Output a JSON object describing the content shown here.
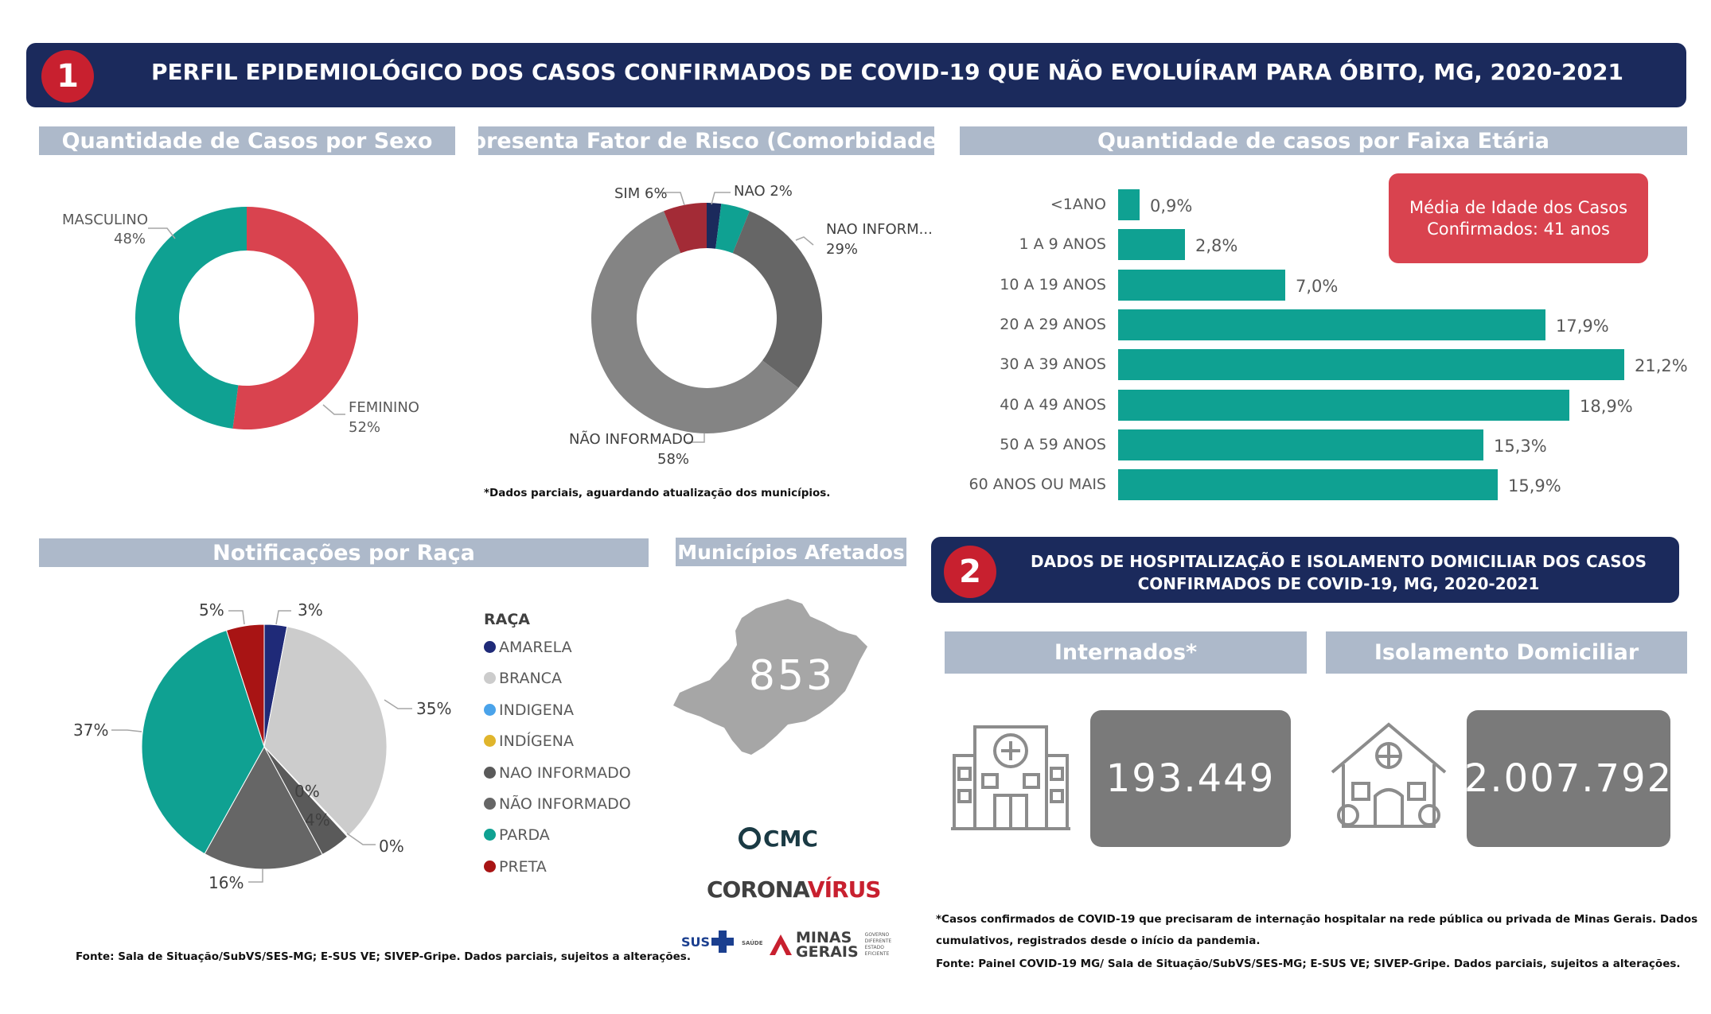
{
  "header1": {
    "number": "1",
    "title": "PERFIL EPIDEMIOLÓGICO DOS CASOS CONFIRMADOS DE COVID-19 QUE NÃO EVOLUÍRAM PARA ÓBITO, MG, 2020-2021"
  },
  "header2": {
    "number": "2",
    "title_line1": "DADOS DE HOSPITALIZAÇÃO E ISOLAMENTO DOMICILIAR DOS CASOS",
    "title_line2": "CONFIRMADOS DE COVID-19, MG, 2020-2021"
  },
  "sections": {
    "sexo": "Quantidade de Casos por Sexo",
    "risco": "Apresenta Fator de Risco (Comorbidade*)",
    "faixa": "Quantidade de casos por Faixa Etária",
    "raca": "Notificações por Raça",
    "municipios": "Municípios Afetados",
    "internados": "Internados*",
    "isolamento": "Isolamento Domiciliar"
  },
  "notes": {
    "risco": "*Dados parciais, aguardando atualização dos municípios.",
    "fonte1": "Fonte: Sala de Situação/SubVS/SES-MG; E-SUS VE; SIVEP-Gripe. Dados parciais, sujeitos a alterações.",
    "hosp_line1": "*Casos confirmados de COVID-19 que precisaram de internação hospitalar na rede pública ou privada de Minas Gerais. Dados",
    "hosp_line2": "cumulativos, registrados desde o início da pandemia.",
    "fonte2": "Fonte: Painel COVID-19 MG/ Sala de Situação/SubVS/SES-MG; E-SUS VE; SIVEP-Gripe. Dados parciais, sujeitos a alterações."
  },
  "media_idade": {
    "line1": "Média de Idade dos Casos",
    "line2": "Confirmados: 41 anos"
  },
  "municipios": {
    "value": "853"
  },
  "internados": {
    "value": "193.449"
  },
  "isolamento": {
    "value": "2.007.792"
  },
  "logos": {
    "cmc": "CMC",
    "corona1": "CORONA",
    "corona2": "VÍRUS",
    "sus": "SUS",
    "saude": "SAÚDE",
    "minas1": "MINAS",
    "minas2": "GERAIS",
    "gov1": "GOVERNO",
    "gov2": "DIFERENTE",
    "gov3": "ESTADO",
    "gov4": "EFICIENTE"
  },
  "colors": {
    "banner": "#1b2a5c",
    "badge": "#c8202f",
    "teal": "#0fa192",
    "red": "#d9434f",
    "section": "#adb9ca",
    "bigbox": "#7a7a7a"
  },
  "chart_data": [
    {
      "type": "pie",
      "variant": "donut",
      "slices": [
        {
          "label": "FEMININO",
          "value": 52,
          "pct_label": "52%",
          "color": "#d9434f"
        },
        {
          "label": "MASCULINO",
          "value": 48,
          "pct_label": "48%",
          "color": "#0fa192"
        }
      ]
    },
    {
      "type": "pie",
      "variant": "donut",
      "slices": [
        {
          "label": "NAO",
          "value": 2,
          "pct_label": "NAO 2%",
          "color": "#1b2a5c"
        },
        {
          "label": "",
          "value": 4,
          "pct_label": "",
          "color": "#0fa192"
        },
        {
          "label": "NAO INFORM...",
          "value": 29,
          "pct_label": "29%",
          "color": "#666666"
        },
        {
          "label": "NÃO INFORMADO",
          "value": 58,
          "pct_label": "58%",
          "color": "#848484"
        },
        {
          "label": "SIM",
          "value": 6,
          "pct_label": "SIM 6%",
          "color": "#a32b36"
        }
      ]
    },
    {
      "type": "bar",
      "orientation": "horizontal",
      "categories": [
        "<1ANO",
        "1 A 9 ANOS",
        "10 A 19 ANOS",
        "20 A 29 ANOS",
        "30 A 39 ANOS",
        "40 A 49 ANOS",
        "50 A 59 ANOS",
        "60 ANOS OU MAIS"
      ],
      "values": [
        0.9,
        2.8,
        7.0,
        17.9,
        21.2,
        18.9,
        15.3,
        15.9
      ],
      "value_labels": [
        "0,9%",
        "2,8%",
        "7,0%",
        "17,9%",
        "21,2%",
        "18,9%",
        "15,3%",
        "15,9%"
      ],
      "color": "#0fa192"
    },
    {
      "type": "pie",
      "legend_title": "RAÇA",
      "legend": [
        {
          "label": "AMARELA",
          "color": "#1f2a78"
        },
        {
          "label": "BRANCA",
          "color": "#cccccc"
        },
        {
          "label": "INDIGENA",
          "color": "#4aa3ea"
        },
        {
          "label": "INDÍGENA",
          "color": "#e0b52c"
        },
        {
          "label": "NAO INFORMADO",
          "color": "#5a5a5a"
        },
        {
          "label": "NÃO INFORMADO",
          "color": "#666666"
        },
        {
          "label": "PARDA",
          "color": "#0fa192"
        },
        {
          "label": "PRETA",
          "color": "#a81414"
        }
      ],
      "slices": [
        {
          "label": "AMARELA",
          "value": 3,
          "pct_label": "3%",
          "color": "#1f2a78"
        },
        {
          "label": "BRANCA",
          "value": 35,
          "pct_label": "35%",
          "color": "#cccccc"
        },
        {
          "label": "INDIGENA",
          "value": 0.1,
          "pct_label": "0%",
          "color": "#4aa3ea"
        },
        {
          "label": "INDÍGENA",
          "value": 0.1,
          "pct_label": "0%",
          "color": "#e0b52c"
        },
        {
          "label": "NAO INFORMADO",
          "value": 4,
          "pct_label": "4%",
          "color": "#5a5a5a"
        },
        {
          "label": "NÃO INFORMADO",
          "value": 16,
          "pct_label": "16%",
          "color": "#666666"
        },
        {
          "label": "PARDA",
          "value": 37,
          "pct_label": "37%",
          "color": "#0fa192"
        },
        {
          "label": "PRETA",
          "value": 5,
          "pct_label": "5%",
          "color": "#a81414"
        }
      ]
    }
  ]
}
